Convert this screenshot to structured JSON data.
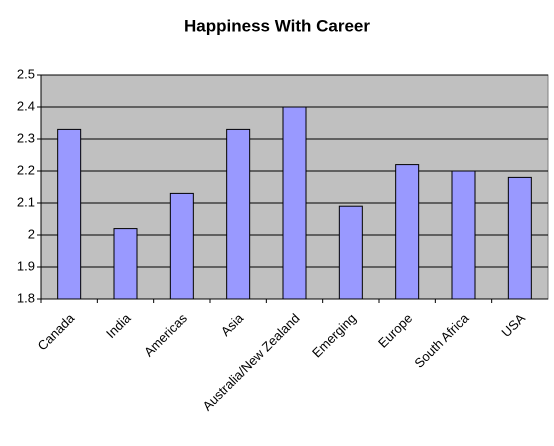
{
  "chart_data": {
    "type": "bar",
    "title": "Happiness With Career",
    "categories": [
      "Canada",
      "India",
      "Americas",
      "Asia",
      "Australia/New Zealand",
      "Emerging",
      "Europe",
      "South Africa",
      "USA"
    ],
    "values": [
      2.33,
      2.02,
      2.13,
      2.33,
      2.4,
      2.09,
      2.22,
      2.2,
      2.18
    ],
    "color": "#9999ff",
    "plot_background": "#c0c0c0",
    "ylim": [
      1.8,
      2.5
    ],
    "yticks": [
      1.8,
      1.9,
      2,
      2.1,
      2.2,
      2.3,
      2.4,
      2.5
    ],
    "grid": true
  }
}
